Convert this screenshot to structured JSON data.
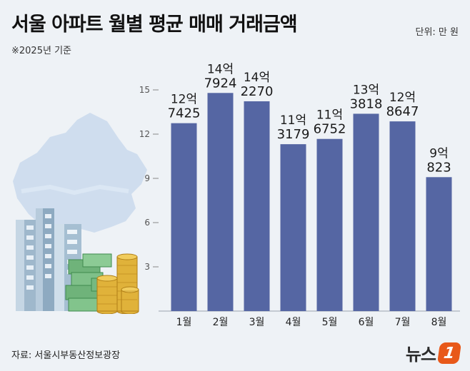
{
  "header": {
    "title": "서울 아파트 월별 평균 매매 거래금액",
    "unit": "단위: 만 원",
    "subtitle": "※2025년 기준"
  },
  "footer": {
    "source": "자료: 서울시부동산정보광장",
    "logo_text": "뉴스",
    "logo_mark": "1"
  },
  "colors": {
    "bar": "#5566a3",
    "background": "#eef2f6",
    "accent": "#e8591a"
  },
  "chart_data": {
    "type": "bar",
    "categories": [
      "1월",
      "2월",
      "3월",
      "4월",
      "5월",
      "6월",
      "7월",
      "8월"
    ],
    "values": [
      127425,
      147924,
      142270,
      113179,
      116752,
      133818,
      128647,
      90823
    ],
    "labels": [
      [
        "12억",
        "7425"
      ],
      [
        "14억",
        "7924"
      ],
      [
        "14억",
        "2270"
      ],
      [
        "11억",
        "3179"
      ],
      [
        "11억",
        "6752"
      ],
      [
        "13억",
        "3818"
      ],
      [
        "12억",
        "8647"
      ],
      [
        "9억",
        "823"
      ]
    ],
    "yticks": [
      3,
      6,
      9,
      12,
      15
    ],
    "ytick_unit": 10000,
    "ylim": [
      0,
      165000
    ],
    "grid": false,
    "xlabel": "",
    "ylabel": ""
  }
}
